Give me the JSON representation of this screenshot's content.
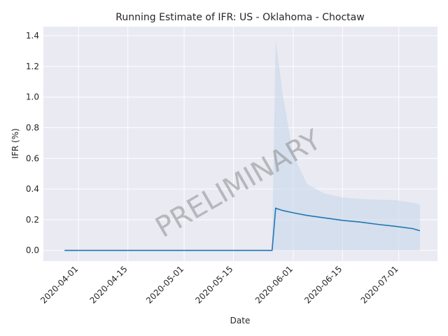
{
  "chart_data": {
    "type": "line",
    "title": "Running Estimate of IFR: US - Oklahoma - Choctaw",
    "xlabel": "Date",
    "ylabel": "IFR (%)",
    "x_tick_labels": [
      "2020-04-01",
      "2020-04-15",
      "2020-05-01",
      "2020-05-15",
      "2020-06-01",
      "2020-06-15",
      "2020-07-01"
    ],
    "y_tick_labels": [
      "0.0",
      "0.2",
      "0.4",
      "0.6",
      "0.8",
      "1.0",
      "1.2",
      "1.4"
    ],
    "ylim": [
      -0.07,
      1.46
    ],
    "grid": true,
    "watermark": "PRELIMINARY",
    "colors": {
      "line": "#1f77b4",
      "band": "#c5d6ea",
      "background": "#e9eaf2",
      "grid": "#ffffff"
    },
    "series": [
      {
        "x": [
          "2020-03-28",
          "2020-05-26",
          "2020-05-27",
          "2020-05-29",
          "2020-06-01",
          "2020-06-05",
          "2020-06-10",
          "2020-06-15",
          "2020-06-20",
          "2020-06-25",
          "2020-06-30",
          "2020-07-05",
          "2020-07-07"
        ],
        "values": [
          0.0,
          0.0,
          0.275,
          0.26,
          0.245,
          0.228,
          0.212,
          0.196,
          0.185,
          0.17,
          0.157,
          0.142,
          0.128
        ],
        "lower": [
          0.0,
          0.0,
          0.0,
          0.0,
          0.0,
          0.0,
          0.0,
          0.0,
          0.0,
          0.0,
          0.0,
          0.0,
          0.0
        ],
        "upper": [
          0.0,
          0.0,
          1.37,
          1.02,
          0.62,
          0.43,
          0.37,
          0.345,
          0.335,
          0.33,
          0.328,
          0.31,
          0.3
        ]
      }
    ]
  }
}
